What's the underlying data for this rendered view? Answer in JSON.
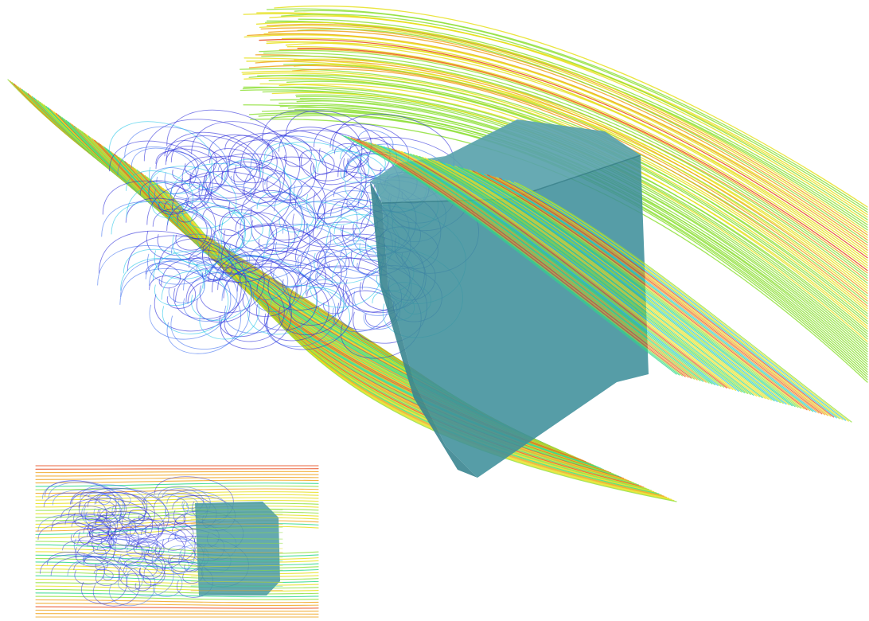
{
  "figure": {
    "main_view": {
      "object": "rounded-box-body",
      "body_color": "#3f8f9b"
    },
    "inset_view": {
      "object": "rounded-box-body-side",
      "body_color": "#4a9aa3"
    },
    "colormap": [
      "#2a2ad8",
      "#3a6cf0",
      "#22c4e8",
      "#2fd88a",
      "#8fe03a",
      "#e6e01e",
      "#f0a41e",
      "#e84a1c"
    ]
  }
}
